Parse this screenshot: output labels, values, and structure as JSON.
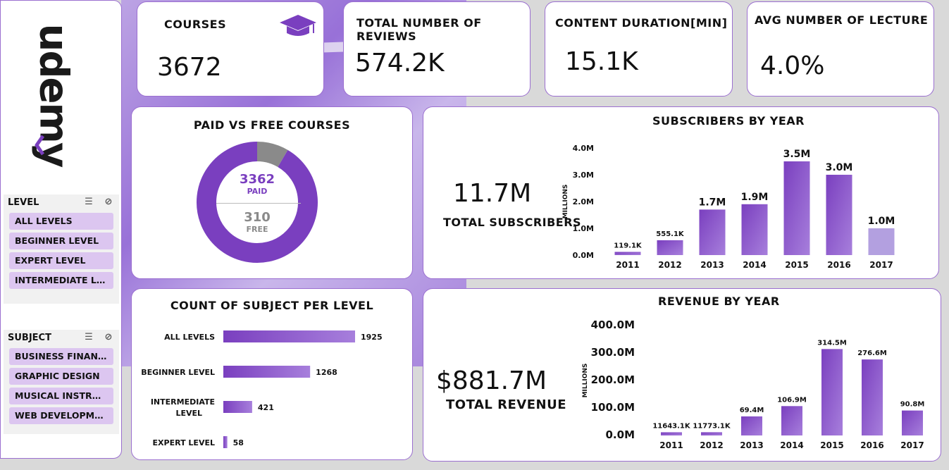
{
  "brand": {
    "logo_text": "udemy"
  },
  "colors": {
    "accent": "#7a3fbf",
    "accent_light": "#9b6fd0",
    "grey": "#8a8a8a",
    "slicer_bg": "#dcc6f0"
  },
  "filters": {
    "level": {
      "label": "LEVEL",
      "items": [
        "ALL LEVELS",
        "BEGINNER LEVEL",
        "EXPERT LEVEL",
        "INTERMEDIATE LEVEL"
      ]
    },
    "subject": {
      "label": "SUBJECT",
      "items": [
        "BUSINESS FINANCE",
        "GRAPHIC DESIGN",
        "MUSICAL INSTRUME...",
        "WEB DEVELOPMENT"
      ]
    }
  },
  "kpis": {
    "courses": {
      "label": "COURSES",
      "value": "3672"
    },
    "reviews": {
      "label": "TOTAL NUMBER OF REVIEWS",
      "value": "574.2K"
    },
    "duration": {
      "label": "CONTENT DURATION[MIN]",
      "value": "15.1K"
    },
    "lecture": {
      "label": "AVG NUMBER OF LECTURE",
      "value": "4.0%"
    }
  },
  "subscribers_total": {
    "value": "11.7M",
    "label": "TOTAL SUBSCRIBERS"
  },
  "revenue_total": {
    "value": "$881.7M",
    "label": "TOTAL REVENUE"
  },
  "chart_data": [
    {
      "type": "pie",
      "title": "PAID VS FREE COURSES",
      "categories": [
        "PAID",
        "FREE"
      ],
      "values": [
        3362,
        310
      ],
      "labels": [
        "3362",
        "310"
      ]
    },
    {
      "type": "bar",
      "title": "SUBSCRIBERS BY YEAR",
      "categories": [
        "2011",
        "2012",
        "2013",
        "2014",
        "2015",
        "2016",
        "2017"
      ],
      "values": [
        0.1191,
        0.5551,
        1.7,
        1.9,
        3.5,
        3.0,
        1.0
      ],
      "labels": [
        "119.1K",
        "555.1K",
        "1.7M",
        "1.9M",
        "3.5M",
        "3.0M",
        "1.0M"
      ],
      "ylabel": "MILLIONS",
      "yticks": [
        "0.0M",
        "1.0M",
        "2.0M",
        "3.0M",
        "4.0M"
      ],
      "ylim": [
        0,
        4
      ]
    },
    {
      "type": "bar",
      "title": "COUNT OF SUBJECT PER LEVEL",
      "orientation": "horizontal",
      "categories": [
        "ALL LEVELS",
        "BEGINNER LEVEL",
        "INTERMEDIATE LEVEL",
        "EXPERT LEVEL"
      ],
      "values": [
        1925,
        1268,
        421,
        58
      ],
      "labels": [
        "1925",
        "1268",
        "421",
        "58"
      ]
    },
    {
      "type": "bar",
      "title": "REVENUE BY YEAR",
      "categories": [
        "2011",
        "2012",
        "2013",
        "2014",
        "2015",
        "2016",
        "2017"
      ],
      "values": [
        11.6431,
        11.7731,
        69.4,
        106.9,
        314.5,
        276.6,
        90.8
      ],
      "labels": [
        "11643.1K",
        "11773.1K",
        "69.4M",
        "106.9M",
        "314.5M",
        "276.6M",
        "90.8M"
      ],
      "ylabel": "MILLIONS",
      "yticks": [
        "0.0M",
        "100.0M",
        "200.0M",
        "300.0M",
        "400.0M"
      ],
      "ylim": [
        0,
        400
      ]
    }
  ]
}
